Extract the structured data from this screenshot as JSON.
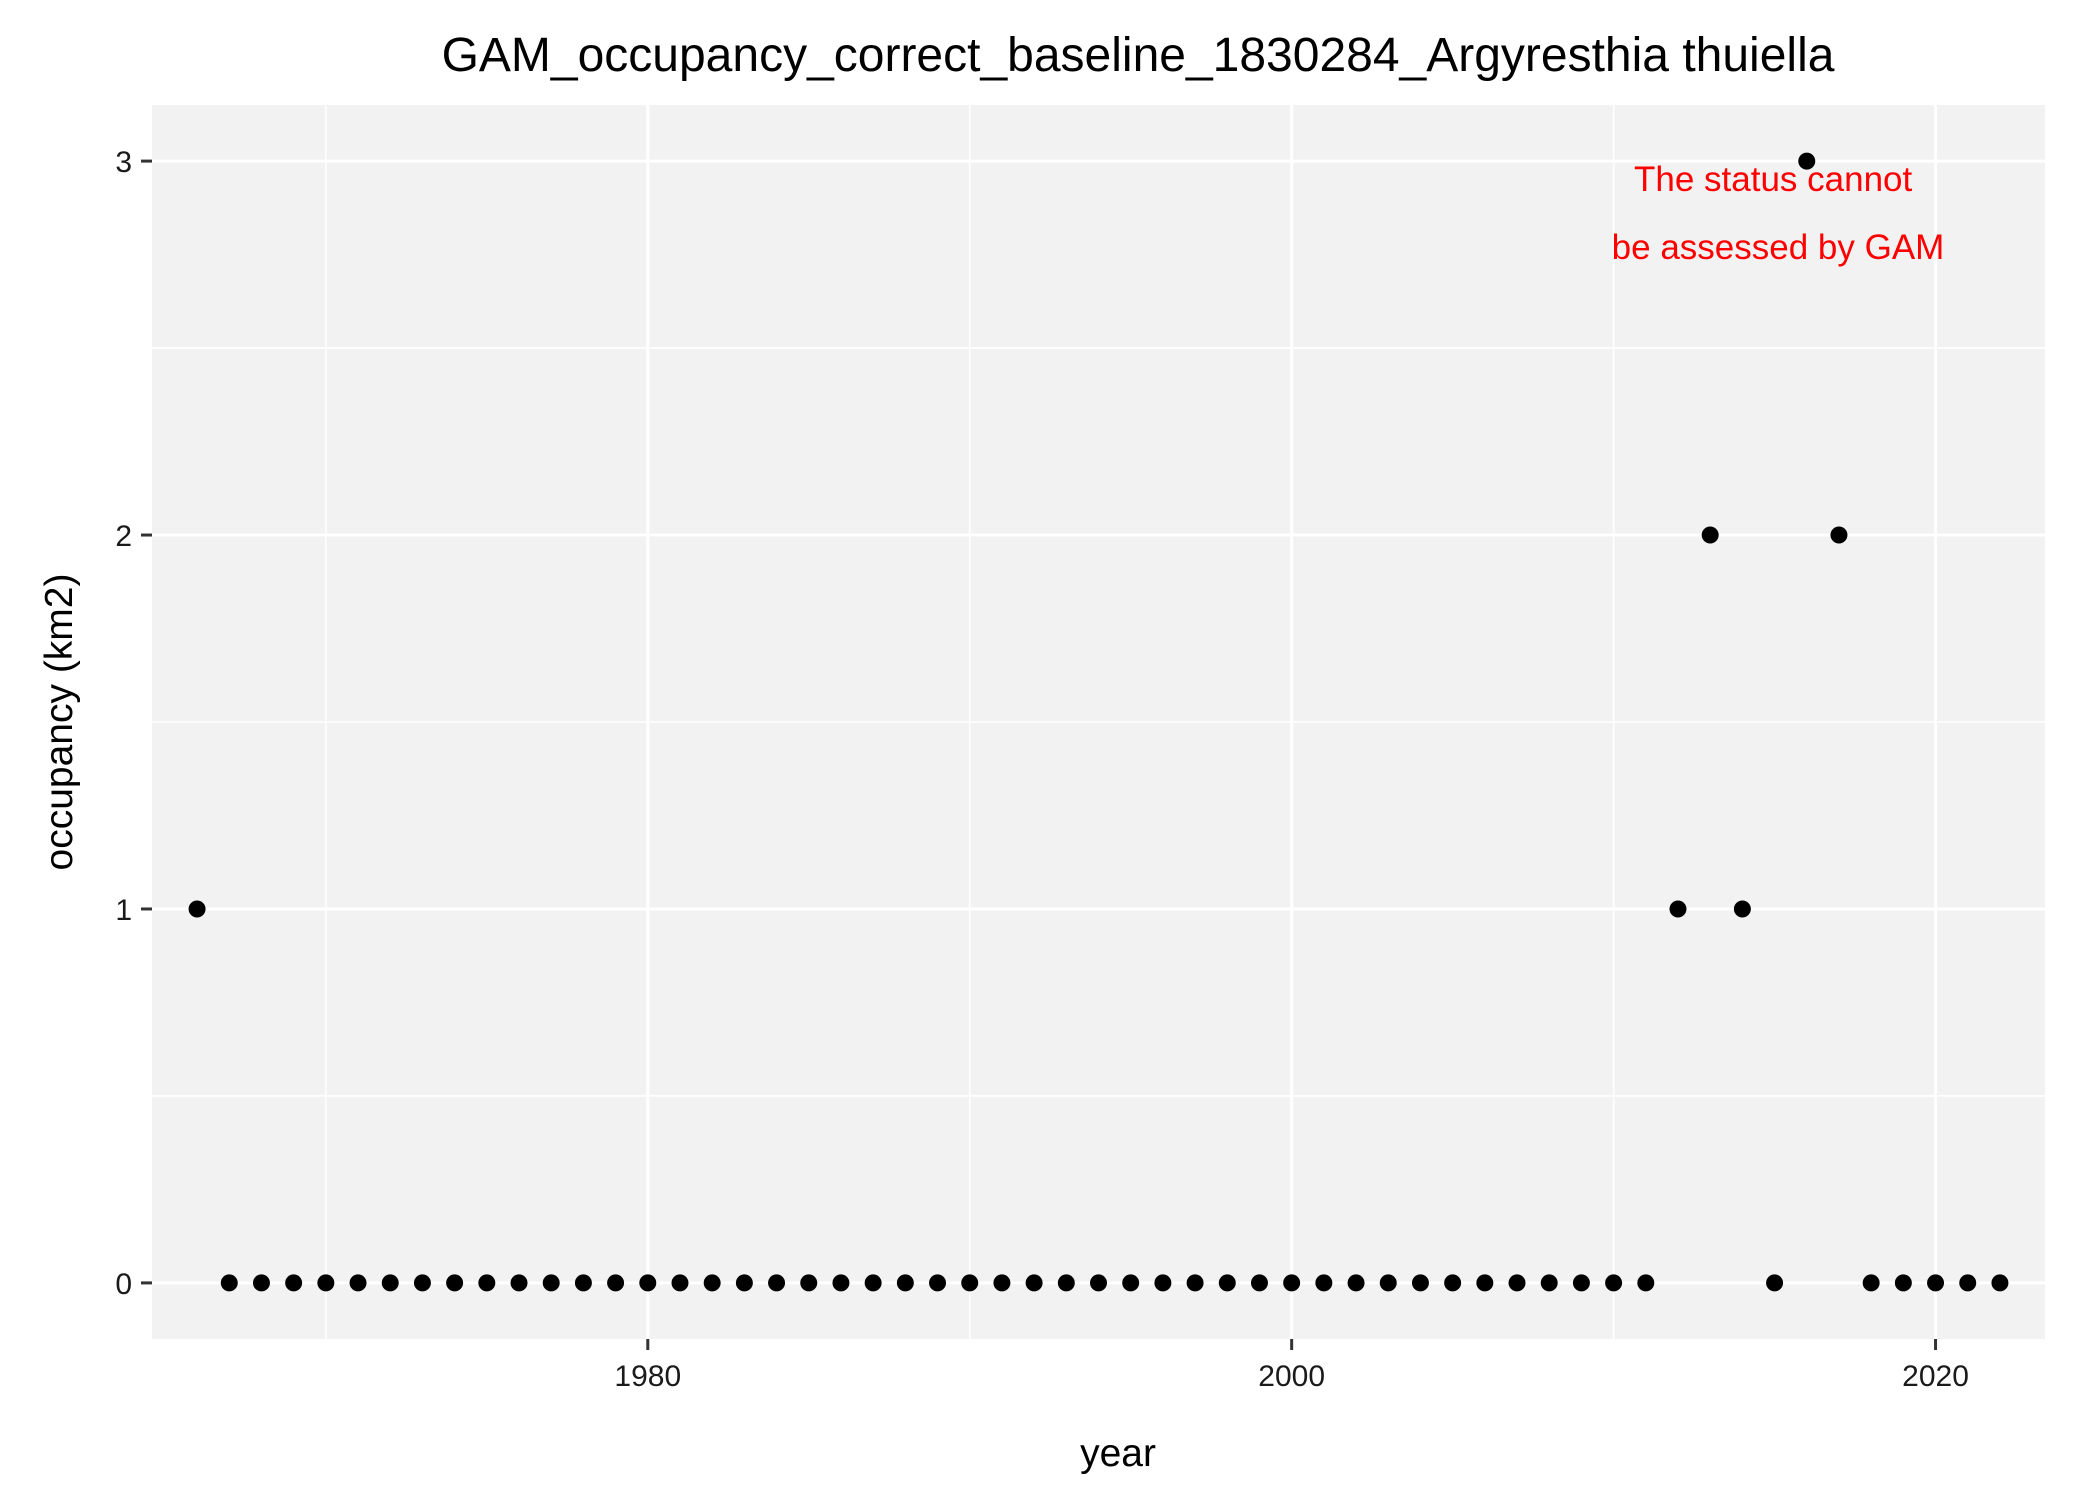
{
  "chart_data": {
    "type": "scatter",
    "title": "GAM_occupancy_correct_baseline_1830284_Argyresthia thuiella",
    "xlabel": "year",
    "ylabel": "occupancy (km2)",
    "xlim": [
      1964.6,
      2023.4
    ],
    "ylim": [
      -0.15,
      3.15
    ],
    "x_ticks": [
      1980,
      2000,
      2020
    ],
    "x_tick_labels": [
      "1980",
      "2000",
      "2020"
    ],
    "x_minor_ticks": [
      1970,
      1990,
      2010
    ],
    "y_ticks": [
      0,
      1,
      2,
      3
    ],
    "y_tick_labels": [
      "0",
      "1",
      "2",
      "3"
    ],
    "y_minor_ticks": [
      0.5,
      1.5,
      2.5
    ],
    "grid": true,
    "colors": {
      "panel_background": "#f2f2f2",
      "grid": "#ffffff",
      "point": "#000000",
      "annotation": "#ff0000"
    },
    "annotation": {
      "lines": [
        "The status cannot",
        "be assessed by GAM"
      ],
      "color": "#ff0000"
    },
    "points": [
      {
        "x": 1966,
        "y": 1
      },
      {
        "x": 1967,
        "y": 0
      },
      {
        "x": 1968,
        "y": 0
      },
      {
        "x": 1969,
        "y": 0
      },
      {
        "x": 1970,
        "y": 0
      },
      {
        "x": 1971,
        "y": 0
      },
      {
        "x": 1972,
        "y": 0
      },
      {
        "x": 1973,
        "y": 0
      },
      {
        "x": 1974,
        "y": 0
      },
      {
        "x": 1975,
        "y": 0
      },
      {
        "x": 1976,
        "y": 0
      },
      {
        "x": 1977,
        "y": 0
      },
      {
        "x": 1978,
        "y": 0
      },
      {
        "x": 1979,
        "y": 0
      },
      {
        "x": 1980,
        "y": 0
      },
      {
        "x": 1981,
        "y": 0
      },
      {
        "x": 1982,
        "y": 0
      },
      {
        "x": 1983,
        "y": 0
      },
      {
        "x": 1984,
        "y": 0
      },
      {
        "x": 1985,
        "y": 0
      },
      {
        "x": 1986,
        "y": 0
      },
      {
        "x": 1987,
        "y": 0
      },
      {
        "x": 1988,
        "y": 0
      },
      {
        "x": 1989,
        "y": 0
      },
      {
        "x": 1990,
        "y": 0
      },
      {
        "x": 1991,
        "y": 0
      },
      {
        "x": 1992,
        "y": 0
      },
      {
        "x": 1993,
        "y": 0
      },
      {
        "x": 1994,
        "y": 0
      },
      {
        "x": 1995,
        "y": 0
      },
      {
        "x": 1996,
        "y": 0
      },
      {
        "x": 1997,
        "y": 0
      },
      {
        "x": 1998,
        "y": 0
      },
      {
        "x": 1999,
        "y": 0
      },
      {
        "x": 2000,
        "y": 0
      },
      {
        "x": 2001,
        "y": 0
      },
      {
        "x": 2002,
        "y": 0
      },
      {
        "x": 2003,
        "y": 0
      },
      {
        "x": 2004,
        "y": 0
      },
      {
        "x": 2005,
        "y": 0
      },
      {
        "x": 2006,
        "y": 0
      },
      {
        "x": 2007,
        "y": 0
      },
      {
        "x": 2008,
        "y": 0
      },
      {
        "x": 2009,
        "y": 0
      },
      {
        "x": 2010,
        "y": 0
      },
      {
        "x": 2011,
        "y": 0
      },
      {
        "x": 2012,
        "y": 1
      },
      {
        "x": 2013,
        "y": 2
      },
      {
        "x": 2014,
        "y": 1
      },
      {
        "x": 2015,
        "y": 0
      },
      {
        "x": 2016,
        "y": 3
      },
      {
        "x": 2017,
        "y": 2
      },
      {
        "x": 2018,
        "y": 0
      },
      {
        "x": 2019,
        "y": 0
      },
      {
        "x": 2020,
        "y": 0
      },
      {
        "x": 2021,
        "y": 0
      },
      {
        "x": 2022,
        "y": 0
      }
    ]
  }
}
